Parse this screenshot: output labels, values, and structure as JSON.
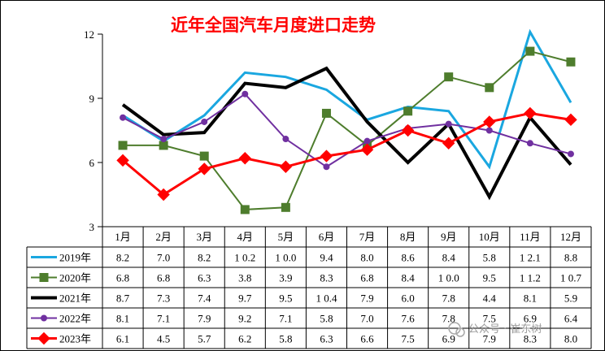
{
  "chart_data": {
    "type": "line",
    "title": "近年全国汽车月度进口走势",
    "categories": [
      "1月",
      "2月",
      "3月",
      "4月",
      "5月",
      "6月",
      "7月",
      "8月",
      "9月",
      "10月",
      "11月",
      "12月"
    ],
    "ylim": [
      3,
      12
    ],
    "yticks": [
      3,
      6,
      9,
      12
    ],
    "grid": false,
    "legend": "table-left",
    "series": [
      {
        "name": "2019年",
        "color": "#1aa7e0",
        "marker": "none",
        "width": 3,
        "values": [
          8.2,
          7.0,
          8.2,
          10.2,
          10.0,
          9.4,
          8.0,
          8.6,
          8.4,
          5.8,
          12.1,
          8.8
        ]
      },
      {
        "name": "2020年",
        "color": "#4e7d2d",
        "marker": "square",
        "width": 2,
        "values": [
          6.8,
          6.8,
          6.3,
          3.8,
          3.9,
          8.3,
          6.8,
          8.4,
          10.0,
          9.5,
          11.2,
          10.7
        ]
      },
      {
        "name": "2021年",
        "color": "#000000",
        "marker": "none",
        "width": 4,
        "values": [
          8.7,
          7.3,
          7.4,
          9.7,
          9.5,
          10.4,
          7.9,
          6.0,
          7.8,
          4.4,
          8.1,
          5.9
        ]
      },
      {
        "name": "2022年",
        "color": "#7030a0",
        "marker": "circle",
        "width": 2,
        "values": [
          8.1,
          7.1,
          7.9,
          9.2,
          7.1,
          5.8,
          7.0,
          7.6,
          7.8,
          7.5,
          6.9,
          6.4
        ]
      },
      {
        "name": "2023年",
        "color": "#ff0000",
        "marker": "diamond",
        "width": 3,
        "values": [
          6.1,
          4.5,
          5.7,
          6.2,
          5.8,
          6.3,
          6.6,
          7.5,
          6.9,
          7.9,
          8.3,
          8.0
        ]
      }
    ],
    "table": [
      [
        "8.2",
        "7.0",
        "8.2",
        "10.2",
        "10.0",
        "9.4",
        "8.0",
        "8.6",
        "8.4",
        "5.8",
        "12.1",
        "8.8"
      ],
      [
        "6.8",
        "6.8",
        "6.3",
        "3.8",
        "3.9",
        "8.3",
        "6.8",
        "8.4",
        "10.0",
        "9.5",
        "11.2",
        "10.7"
      ],
      [
        "8.7",
        "7.3",
        "7.4",
        "9.7",
        "9.5",
        "10.4",
        "7.9",
        "6.0",
        "7.8",
        "4.4",
        "8.1",
        "5.9"
      ],
      [
        "8.1",
        "7.1",
        "7.9",
        "9.2",
        "7.1",
        "5.8",
        "7.0",
        "7.6",
        "7.8",
        "7.5",
        "6.9",
        "6.4"
      ],
      [
        "6.1",
        "4.5",
        "5.7",
        "6.2",
        "5.8",
        "6.3",
        "6.6",
        "7.5",
        "6.9",
        "7.9",
        "8.3",
        "8.0"
      ]
    ]
  },
  "watermark": {
    "text": "公众号 · 崔东树",
    "icon": "wechat-icon"
  }
}
